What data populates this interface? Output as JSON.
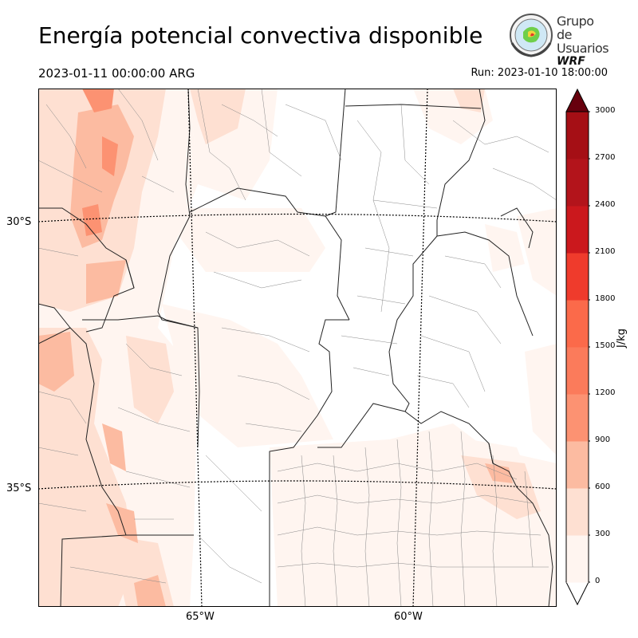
{
  "title": "Energía potencial convectiva disponible",
  "valid_time": "2023-01-11 00:00:00 ARG",
  "run_time": "Run: 2023-01-10 18:00:00",
  "logo": {
    "line1": "Grupo de",
    "line2": "Usuarios",
    "line3": "WRF",
    "icon": "globe-emblem-icon"
  },
  "map": {
    "lat_labels": [
      "30°S",
      "35°S"
    ],
    "lon_labels": [
      "65°W",
      "60°W"
    ],
    "gridlines": "dotted"
  },
  "colorbar": {
    "units": "J/kg",
    "ticks": [
      "0",
      "300",
      "600",
      "900",
      "1200",
      "1500",
      "1800",
      "2100",
      "2400",
      "2700",
      "3000"
    ],
    "colors": [
      "#fff5f0",
      "#fee0d2",
      "#fcbba1",
      "#fc9272",
      "#fb7b5b",
      "#fb6a4a",
      "#ef3b2c",
      "#cb181d",
      "#b3141b",
      "#a50f15",
      "#67000d"
    ],
    "extend": "both"
  }
}
